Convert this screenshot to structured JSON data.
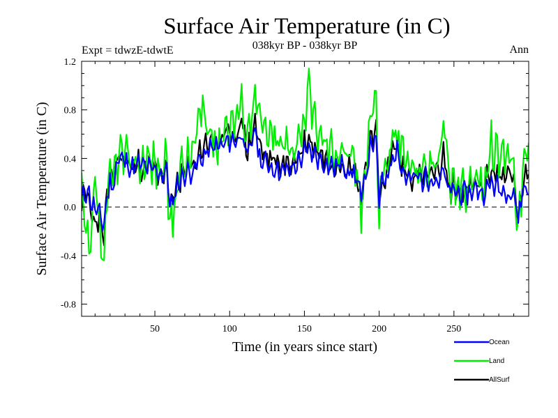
{
  "chart_data": {
    "type": "line",
    "title": "Surface Air Temperature (in C)",
    "subtitle": "038kyr BP - 038kyr BP",
    "experiment_label": "Expt = tdwzE-tdwtE",
    "season_label": "Ann",
    "xlabel": "Time (in years since start)",
    "ylabel": "Surface Air Temperature (in C)",
    "xlim": [
      1,
      300
    ],
    "ylim": [
      -0.9,
      1.2
    ],
    "x_ticks": [
      50,
      100,
      150,
      200,
      250
    ],
    "y_ticks": [
      -0.8,
      -0.4,
      0.0,
      0.4,
      0.8,
      1.2
    ],
    "y_tick_labels": [
      "-0.8",
      "-0.4",
      "0.0",
      "0.4",
      "0.8",
      "1.2"
    ],
    "reference_line": 0.0,
    "legend_position": "bottom-right",
    "series": [
      {
        "name": "Ocean",
        "color": "#0000ff",
        "anchors": [
          [
            1,
            0.05
          ],
          [
            5,
            0.15
          ],
          [
            8,
            0.02
          ],
          [
            12,
            -0.05
          ],
          [
            16,
            -0.15
          ],
          [
            18,
            0.1
          ],
          [
            20,
            0.2
          ],
          [
            22,
            0.15
          ],
          [
            24,
            0.35
          ],
          [
            26,
            0.4
          ],
          [
            30,
            0.38
          ],
          [
            35,
            0.32
          ],
          [
            40,
            0.35
          ],
          [
            45,
            0.32
          ],
          [
            50,
            0.3
          ],
          [
            55,
            0.27
          ],
          [
            58,
            0.3
          ],
          [
            60,
            0.05
          ],
          [
            62,
            0.0
          ],
          [
            65,
            0.2
          ],
          [
            70,
            0.27
          ],
          [
            75,
            0.3
          ],
          [
            80,
            0.38
          ],
          [
            85,
            0.45
          ],
          [
            90,
            0.5
          ],
          [
            95,
            0.5
          ],
          [
            100,
            0.55
          ],
          [
            105,
            0.55
          ],
          [
            108,
            0.6
          ],
          [
            110,
            0.55
          ],
          [
            112,
            0.38
          ],
          [
            115,
            0.55
          ],
          [
            117,
            0.65
          ],
          [
            120,
            0.4
          ],
          [
            125,
            0.35
          ],
          [
            130,
            0.32
          ],
          [
            135,
            0.3
          ],
          [
            140,
            0.3
          ],
          [
            145,
            0.35
          ],
          [
            150,
            0.45
          ],
          [
            155,
            0.45
          ],
          [
            160,
            0.4
          ],
          [
            165,
            0.35
          ],
          [
            170,
            0.33
          ],
          [
            175,
            0.35
          ],
          [
            180,
            0.3
          ],
          [
            185,
            0.25
          ],
          [
            188,
            0.05
          ],
          [
            190,
            0.2
          ],
          [
            195,
            0.55
          ],
          [
            198,
            0.5
          ],
          [
            200,
            0.05
          ],
          [
            202,
            0.2
          ],
          [
            205,
            0.25
          ],
          [
            210,
            0.45
          ],
          [
            212,
            0.5
          ],
          [
            215,
            0.3
          ],
          [
            220,
            0.22
          ],
          [
            225,
            0.25
          ],
          [
            230,
            0.22
          ],
          [
            235,
            0.25
          ],
          [
            240,
            0.2
          ],
          [
            243,
            0.3
          ],
          [
            245,
            0.18
          ],
          [
            248,
            0.12
          ],
          [
            250,
            0.15
          ],
          [
            255,
            0.1
          ],
          [
            260,
            0.12
          ],
          [
            265,
            0.15
          ],
          [
            270,
            0.12
          ],
          [
            275,
            0.2
          ],
          [
            280,
            0.15
          ],
          [
            285,
            0.13
          ],
          [
            290,
            0.12
          ],
          [
            293,
            -0.1
          ],
          [
            296,
            0.15
          ],
          [
            300,
            0.15
          ]
        ]
      },
      {
        "name": "Land",
        "color": "#00ee00",
        "anchors": [
          [
            1,
            0.15
          ],
          [
            3,
            -0.2
          ],
          [
            5,
            -0.3
          ],
          [
            7,
            -0.4
          ],
          [
            10,
            0.2
          ],
          [
            14,
            -0.3
          ],
          [
            16,
            -0.5
          ],
          [
            17,
            -0.2
          ],
          [
            19,
            0.15
          ],
          [
            22,
            0.25
          ],
          [
            25,
            0.4
          ],
          [
            28,
            0.45
          ],
          [
            30,
            0.4
          ],
          [
            33,
            0.35
          ],
          [
            36,
            0.4
          ],
          [
            40,
            0.35
          ],
          [
            45,
            0.4
          ],
          [
            50,
            0.35
          ],
          [
            55,
            0.3
          ],
          [
            58,
            0.35
          ],
          [
            60,
            -0.2
          ],
          [
            62,
            -0.1
          ],
          [
            65,
            0.25
          ],
          [
            70,
            0.35
          ],
          [
            75,
            0.45
          ],
          [
            80,
            0.7
          ],
          [
            82,
            0.85
          ],
          [
            85,
            0.65
          ],
          [
            90,
            0.55
          ],
          [
            93,
            0.5
          ],
          [
            95,
            0.65
          ],
          [
            100,
            0.7
          ],
          [
            105,
            0.75
          ],
          [
            108,
            0.85
          ],
          [
            112,
            0.6
          ],
          [
            115,
            0.85
          ],
          [
            117,
            0.95
          ],
          [
            120,
            0.7
          ],
          [
            125,
            0.6
          ],
          [
            130,
            0.55
          ],
          [
            135,
            0.5
          ],
          [
            140,
            0.5
          ],
          [
            145,
            0.55
          ],
          [
            150,
            0.75
          ],
          [
            153,
            0.95
          ],
          [
            155,
            0.75
          ],
          [
            160,
            0.6
          ],
          [
            165,
            0.5
          ],
          [
            170,
            0.45
          ],
          [
            175,
            0.5
          ],
          [
            180,
            0.4
          ],
          [
            185,
            0.3
          ],
          [
            188,
            -0.05
          ],
          [
            190,
            0.3
          ],
          [
            195,
            0.85
          ],
          [
            198,
            0.85
          ],
          [
            200,
            -0.1
          ],
          [
            202,
            0.3
          ],
          [
            205,
            0.35
          ],
          [
            210,
            0.6
          ],
          [
            212,
            0.55
          ],
          [
            215,
            0.45
          ],
          [
            220,
            0.35
          ],
          [
            225,
            0.3
          ],
          [
            230,
            0.32
          ],
          [
            235,
            0.35
          ],
          [
            240,
            0.4
          ],
          [
            243,
            0.65
          ],
          [
            245,
            0.4
          ],
          [
            248,
            0.1
          ],
          [
            250,
            0.2
          ],
          [
            255,
            0.15
          ],
          [
            260,
            0.2
          ],
          [
            265,
            0.25
          ],
          [
            270,
            0.2
          ],
          [
            275,
            0.5
          ],
          [
            280,
            0.4
          ],
          [
            285,
            0.5
          ],
          [
            290,
            0.4
          ],
          [
            293,
            -0.2
          ],
          [
            296,
            0.3
          ],
          [
            300,
            0.45
          ]
        ]
      },
      {
        "name": "AllSurf",
        "color": "#000000",
        "anchors": [
          [
            1,
            0.05
          ],
          [
            5,
            0.1
          ],
          [
            8,
            -0.1
          ],
          [
            12,
            -0.1
          ],
          [
            16,
            -0.25
          ],
          [
            18,
            0.1
          ],
          [
            20,
            0.2
          ],
          [
            22,
            0.18
          ],
          [
            24,
            0.35
          ],
          [
            26,
            0.42
          ],
          [
            30,
            0.38
          ],
          [
            35,
            0.33
          ],
          [
            40,
            0.35
          ],
          [
            45,
            0.33
          ],
          [
            50,
            0.3
          ],
          [
            55,
            0.28
          ],
          [
            58,
            0.3
          ],
          [
            60,
            0.0
          ],
          [
            62,
            0.0
          ],
          [
            65,
            0.22
          ],
          [
            70,
            0.28
          ],
          [
            75,
            0.33
          ],
          [
            80,
            0.45
          ],
          [
            85,
            0.55
          ],
          [
            90,
            0.52
          ],
          [
            95,
            0.55
          ],
          [
            100,
            0.6
          ],
          [
            105,
            0.62
          ],
          [
            108,
            0.7
          ],
          [
            110,
            0.6
          ],
          [
            112,
            0.45
          ],
          [
            115,
            0.6
          ],
          [
            117,
            0.7
          ],
          [
            120,
            0.5
          ],
          [
            125,
            0.4
          ],
          [
            130,
            0.38
          ],
          [
            135,
            0.35
          ],
          [
            140,
            0.35
          ],
          [
            145,
            0.4
          ],
          [
            150,
            0.52
          ],
          [
            153,
            0.55
          ],
          [
            155,
            0.52
          ],
          [
            160,
            0.45
          ],
          [
            165,
            0.38
          ],
          [
            170,
            0.36
          ],
          [
            175,
            0.38
          ],
          [
            180,
            0.33
          ],
          [
            185,
            0.28
          ],
          [
            188,
            0.03
          ],
          [
            190,
            0.25
          ],
          [
            195,
            0.62
          ],
          [
            198,
            0.6
          ],
          [
            200,
            0.02
          ],
          [
            202,
            0.22
          ],
          [
            205,
            0.28
          ],
          [
            210,
            0.5
          ],
          [
            212,
            0.5
          ],
          [
            215,
            0.35
          ],
          [
            220,
            0.25
          ],
          [
            225,
            0.28
          ],
          [
            230,
            0.25
          ],
          [
            235,
            0.28
          ],
          [
            240,
            0.25
          ],
          [
            243,
            0.45
          ],
          [
            245,
            0.25
          ],
          [
            248,
            0.1
          ],
          [
            250,
            0.16
          ],
          [
            255,
            0.12
          ],
          [
            260,
            0.15
          ],
          [
            265,
            0.18
          ],
          [
            270,
            0.15
          ],
          [
            275,
            0.32
          ],
          [
            280,
            0.25
          ],
          [
            285,
            0.28
          ],
          [
            290,
            0.22
          ],
          [
            293,
            -0.1
          ],
          [
            296,
            0.2
          ],
          [
            300,
            0.25
          ]
        ]
      }
    ]
  }
}
